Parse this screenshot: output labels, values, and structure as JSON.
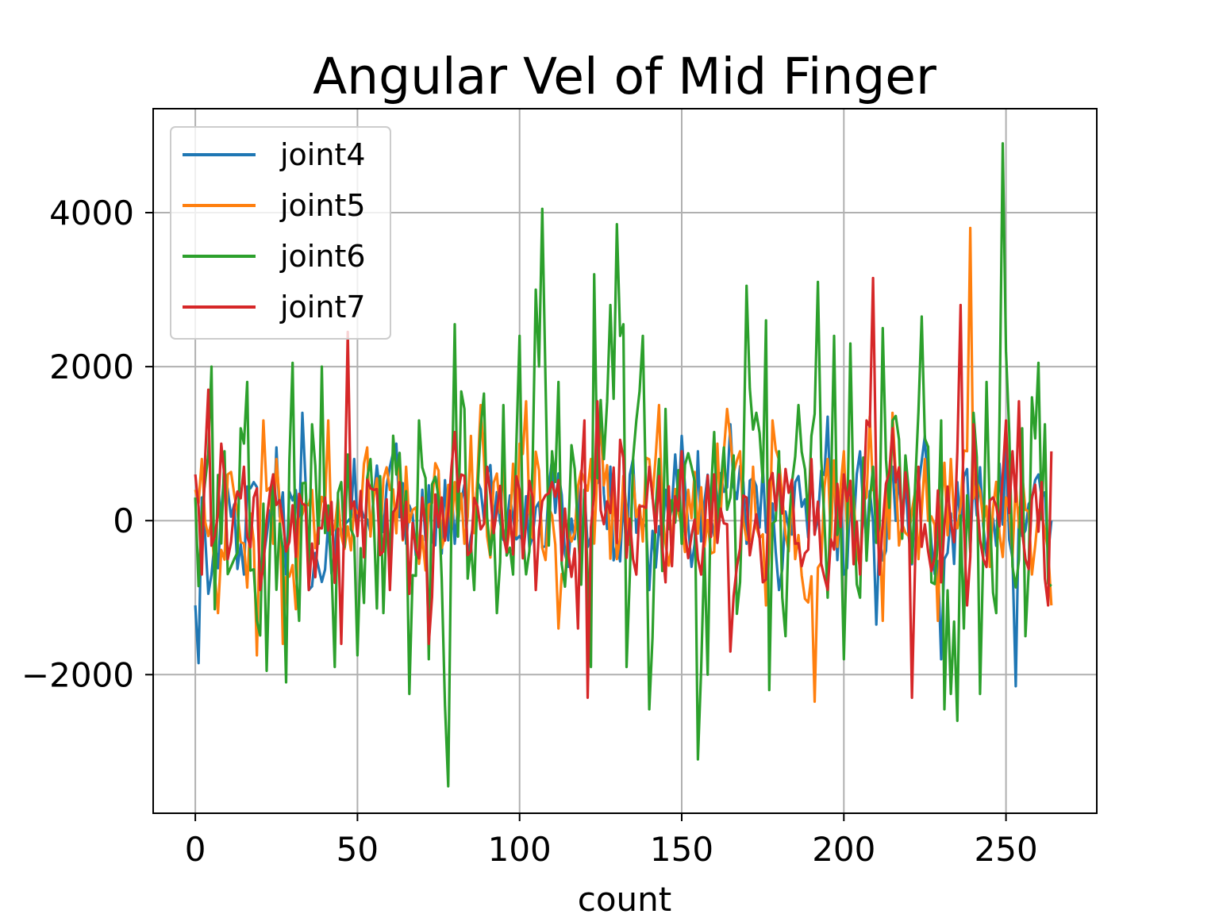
{
  "chart_data": {
    "type": "line",
    "title": "Angular Vel of Mid Finger",
    "xlabel": "count",
    "ylabel": "",
    "xlim": [
      -13,
      278
    ],
    "ylim": [
      -3800,
      5350
    ],
    "xticks": [
      0,
      50,
      100,
      150,
      200,
      250
    ],
    "xtick_labels": [
      "0",
      "50",
      "100",
      "150",
      "200",
      "250"
    ],
    "yticks": [
      -2000,
      0,
      2000,
      4000
    ],
    "ytick_labels": [
      "−2000",
      "0",
      "2000",
      "4000"
    ],
    "grid": true,
    "legend_position": "upper left",
    "x_count": 265,
    "series": [
      {
        "name": "joint4",
        "color": "#1f77b4",
        "keypoints": [
          [
            0,
            -1100
          ],
          [
            1,
            -1850
          ],
          [
            2,
            300
          ],
          [
            4,
            -950
          ],
          [
            10,
            400
          ],
          [
            15,
            -700
          ],
          [
            18,
            500
          ],
          [
            20,
            -800
          ],
          [
            25,
            950
          ],
          [
            28,
            -700
          ],
          [
            33,
            1400
          ],
          [
            35,
            -900
          ],
          [
            45,
            -200
          ],
          [
            49,
            800
          ],
          [
            55,
            300
          ],
          [
            60,
            700
          ],
          [
            62,
            1000
          ],
          [
            65,
            -300
          ],
          [
            70,
            400
          ],
          [
            80,
            -300
          ],
          [
            90,
            600
          ],
          [
            100,
            -200
          ],
          [
            110,
            800
          ],
          [
            115,
            -600
          ],
          [
            120,
            400
          ],
          [
            125,
            1400
          ],
          [
            130,
            -300
          ],
          [
            135,
            800
          ],
          [
            140,
            -900
          ],
          [
            145,
            400
          ],
          [
            150,
            1100
          ],
          [
            153,
            -600
          ],
          [
            155,
            900
          ],
          [
            160,
            -200
          ],
          [
            165,
            1250
          ],
          [
            170,
            -300
          ],
          [
            175,
            700
          ],
          [
            180,
            -900
          ],
          [
            185,
            500
          ],
          [
            195,
            1350
          ],
          [
            200,
            -700
          ],
          [
            205,
            900
          ],
          [
            210,
            -1350
          ],
          [
            215,
            700
          ],
          [
            220,
            -200
          ],
          [
            225,
            1100
          ],
          [
            230,
            -1800
          ],
          [
            235,
            500
          ],
          [
            240,
            600
          ],
          [
            245,
            -100
          ],
          [
            250,
            1000
          ],
          [
            253,
            -2150
          ],
          [
            255,
            -200
          ],
          [
            260,
            600
          ],
          [
            264,
            0
          ]
        ]
      },
      {
        "name": "joint5",
        "color": "#ff7f0e",
        "keypoints": [
          [
            0,
            400
          ],
          [
            2,
            800
          ],
          [
            4,
            -200
          ],
          [
            7,
            -1200
          ],
          [
            10,
            600
          ],
          [
            15,
            -300
          ],
          [
            19,
            -1750
          ],
          [
            21,
            1300
          ],
          [
            25,
            800
          ],
          [
            27,
            -1600
          ],
          [
            31,
            -1150
          ],
          [
            35,
            200
          ],
          [
            41,
            1300
          ],
          [
            45,
            -200
          ],
          [
            50,
            100
          ],
          [
            53,
            950
          ],
          [
            57,
            -400
          ],
          [
            60,
            400
          ],
          [
            65,
            700
          ],
          [
            70,
            -200
          ],
          [
            75,
            650
          ],
          [
            80,
            500
          ],
          [
            85,
            1100
          ],
          [
            88,
            1500
          ],
          [
            90,
            -200
          ],
          [
            95,
            700
          ],
          [
            100,
            1000
          ],
          [
            102,
            1550
          ],
          [
            106,
            650
          ],
          [
            112,
            -1400
          ],
          [
            118,
            450
          ],
          [
            122,
            800
          ],
          [
            125,
            1300
          ],
          [
            130,
            -500
          ],
          [
            135,
            600
          ],
          [
            143,
            1500
          ],
          [
            147,
            -300
          ],
          [
            152,
            400
          ],
          [
            157,
            -350
          ],
          [
            161,
            1000
          ],
          [
            164,
            1450
          ],
          [
            168,
            900
          ],
          [
            172,
            700
          ],
          [
            176,
            -1100
          ],
          [
            178,
            1300
          ],
          [
            185,
            -500
          ],
          [
            191,
            -2350
          ],
          [
            195,
            800
          ],
          [
            200,
            900
          ],
          [
            205,
            -600
          ],
          [
            208,
            1350
          ],
          [
            212,
            -1300
          ],
          [
            215,
            1400
          ],
          [
            220,
            -200
          ],
          [
            225,
            800
          ],
          [
            229,
            -1300
          ],
          [
            231,
            750
          ],
          [
            233,
            800
          ],
          [
            235,
            -100
          ],
          [
            239,
            3800
          ],
          [
            241,
            500
          ],
          [
            245,
            -600
          ],
          [
            250,
            300
          ],
          [
            255,
            600
          ],
          [
            258,
            -700
          ],
          [
            261,
            100
          ],
          [
            264,
            -1100
          ]
        ]
      },
      {
        "name": "joint6",
        "color": "#2ca02c",
        "keypoints": [
          [
            0,
            300
          ],
          [
            1,
            -850
          ],
          [
            3,
            500
          ],
          [
            5,
            2000
          ],
          [
            6,
            -1150
          ],
          [
            9,
            900
          ],
          [
            12,
            -500
          ],
          [
            14,
            1200
          ],
          [
            16,
            1800
          ],
          [
            19,
            -1300
          ],
          [
            22,
            -1950
          ],
          [
            24,
            600
          ],
          [
            28,
            -2100
          ],
          [
            30,
            2050
          ],
          [
            32,
            -1300
          ],
          [
            36,
            1250
          ],
          [
            38,
            -300
          ],
          [
            39,
            2000
          ],
          [
            43,
            -1900
          ],
          [
            45,
            500
          ],
          [
            50,
            -1750
          ],
          [
            54,
            800
          ],
          [
            58,
            -1200
          ],
          [
            62,
            600
          ],
          [
            66,
            -2250
          ],
          [
            69,
            1300
          ],
          [
            72,
            -1800
          ],
          [
            75,
            300
          ],
          [
            77,
            -2400
          ],
          [
            78,
            -3450
          ],
          [
            80,
            2550
          ],
          [
            83,
            1450
          ],
          [
            86,
            -900
          ],
          [
            89,
            1650
          ],
          [
            93,
            -1200
          ],
          [
            95,
            1500
          ],
          [
            98,
            -700
          ],
          [
            100,
            2400
          ],
          [
            103,
            -400
          ],
          [
            105,
            3000
          ],
          [
            107,
            4050
          ],
          [
            110,
            900
          ],
          [
            112,
            1800
          ],
          [
            115,
            -200
          ],
          [
            120,
            400
          ],
          [
            122,
            -1900
          ],
          [
            123,
            3200
          ],
          [
            126,
            800
          ],
          [
            128,
            2800
          ],
          [
            130,
            3850
          ],
          [
            131,
            2400
          ],
          [
            132,
            2550
          ],
          [
            133,
            -1900
          ],
          [
            136,
            1300
          ],
          [
            138,
            2400
          ],
          [
            140,
            -2450
          ],
          [
            143,
            800
          ],
          [
            145,
            1450
          ],
          [
            150,
            -300
          ],
          [
            153,
            700
          ],
          [
            155,
            -3100
          ],
          [
            158,
            -2000
          ],
          [
            160,
            1150
          ],
          [
            165,
            300
          ],
          [
            168,
            -800
          ],
          [
            170,
            3050
          ],
          [
            173,
            1400
          ],
          [
            176,
            2600
          ],
          [
            177,
            -2200
          ],
          [
            180,
            900
          ],
          [
            182,
            -1500
          ],
          [
            186,
            1500
          ],
          [
            190,
            1100
          ],
          [
            192,
            3100
          ],
          [
            195,
            -1000
          ],
          [
            197,
            2400
          ],
          [
            200,
            -1800
          ],
          [
            202,
            2300
          ],
          [
            205,
            -1000
          ],
          [
            209,
            700
          ],
          [
            212,
            2500
          ],
          [
            215,
            1300
          ],
          [
            220,
            400
          ],
          [
            224,
            2650
          ],
          [
            227,
            -800
          ],
          [
            230,
            1300
          ],
          [
            231,
            -2450
          ],
          [
            233,
            -2250
          ],
          [
            235,
            -2600
          ],
          [
            237,
            -1400
          ],
          [
            240,
            1400
          ],
          [
            242,
            -2250
          ],
          [
            244,
            1800
          ],
          [
            247,
            -1200
          ],
          [
            249,
            4900
          ],
          [
            250,
            2200
          ],
          [
            252,
            -600
          ],
          [
            255,
            1200
          ],
          [
            256,
            -1500
          ],
          [
            258,
            1600
          ],
          [
            260,
            2050
          ],
          [
            262,
            1250
          ],
          [
            264,
            -850
          ]
        ]
      },
      {
        "name": "joint7",
        "color": "#d62728",
        "keypoints": [
          [
            0,
            600
          ],
          [
            2,
            -700
          ],
          [
            4,
            1700
          ],
          [
            6,
            -200
          ],
          [
            8,
            1000
          ],
          [
            10,
            -500
          ],
          [
            15,
            700
          ],
          [
            18,
            300
          ],
          [
            20,
            -900
          ],
          [
            24,
            600
          ],
          [
            28,
            -400
          ],
          [
            30,
            200
          ],
          [
            35,
            -900
          ],
          [
            40,
            300
          ],
          [
            45,
            -1600
          ],
          [
            47,
            2450
          ],
          [
            50,
            -200
          ],
          [
            55,
            400
          ],
          [
            60,
            -900
          ],
          [
            63,
            500
          ],
          [
            66,
            -950
          ],
          [
            70,
            300
          ],
          [
            72,
            -1600
          ],
          [
            76,
            300
          ],
          [
            80,
            1150
          ],
          [
            85,
            -400
          ],
          [
            90,
            700
          ],
          [
            95,
            -200
          ],
          [
            100,
            400
          ],
          [
            105,
            -900
          ],
          [
            110,
            500
          ],
          [
            115,
            -400
          ],
          [
            118,
            -1400
          ],
          [
            120,
            1300
          ],
          [
            121,
            -2300
          ],
          [
            124,
            1550
          ],
          [
            128,
            100
          ],
          [
            131,
            1050
          ],
          [
            135,
            -500
          ],
          [
            140,
            700
          ],
          [
            145,
            -800
          ],
          [
            150,
            900
          ],
          [
            155,
            -500
          ],
          [
            160,
            600
          ],
          [
            165,
            -1700
          ],
          [
            170,
            300
          ],
          [
            175,
            -800
          ],
          [
            180,
            600
          ],
          [
            185,
            -300
          ],
          [
            190,
            800
          ],
          [
            195,
            -900
          ],
          [
            200,
            600
          ],
          [
            205,
            -700
          ],
          [
            207,
            1300
          ],
          [
            209,
            3150
          ],
          [
            211,
            -700
          ],
          [
            215,
            1200
          ],
          [
            220,
            200
          ],
          [
            221,
            -2300
          ],
          [
            223,
            700
          ],
          [
            226,
            -400
          ],
          [
            230,
            -800
          ],
          [
            235,
            900
          ],
          [
            236,
            2800
          ],
          [
            238,
            -1100
          ],
          [
            240,
            1250
          ],
          [
            243,
            -500
          ],
          [
            246,
            300
          ],
          [
            250,
            1300
          ],
          [
            252,
            900
          ],
          [
            254,
            1550
          ],
          [
            256,
            -500
          ],
          [
            258,
            300
          ],
          [
            261,
            500
          ],
          [
            263,
            -1100
          ],
          [
            264,
            900
          ]
        ]
      }
    ]
  }
}
